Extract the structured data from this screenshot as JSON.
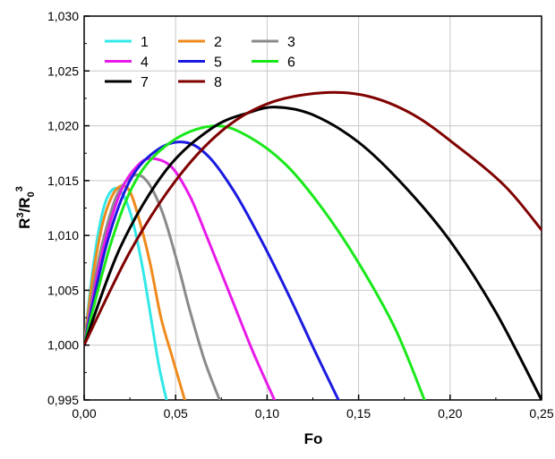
{
  "chart_data": {
    "type": "line",
    "title": "",
    "xlabel": "Fo",
    "ylabel": {
      "base": "R",
      "sup1": "3",
      "mid": "/R",
      "sub": "0",
      "sup2": "3"
    },
    "xlim": [
      0,
      0.25
    ],
    "ylim": [
      0.995,
      1.03
    ],
    "xticks": [
      0,
      0.05,
      0.1,
      0.15,
      0.2,
      0.25
    ],
    "xtick_labels": [
      "0,00",
      "0,05",
      "0,10",
      "0,15",
      "0,20",
      "0,25"
    ],
    "yticks": [
      0.995,
      1.0,
      1.005,
      1.01,
      1.015,
      1.02,
      1.025,
      1.03
    ],
    "ytick_labels": [
      "0,995",
      "1,000",
      "1,005",
      "1,010",
      "1,015",
      "1,020",
      "1,025",
      "1,030"
    ],
    "grid": true,
    "legend": {
      "placement": "top-left",
      "columns": 3
    },
    "series": [
      {
        "name": "1",
        "color": "#33e8e8",
        "points": [
          [
            0,
            1.0
          ],
          [
            0.004,
            1.006
          ],
          [
            0.008,
            1.0105
          ],
          [
            0.012,
            1.0132
          ],
          [
            0.017,
            1.0143
          ],
          [
            0.022,
            1.0135
          ],
          [
            0.027,
            1.011
          ],
          [
            0.032,
            1.007
          ],
          [
            0.037,
            1.002
          ],
          [
            0.041,
            0.998
          ],
          [
            0.045,
            0.995
          ]
        ]
      },
      {
        "name": "2",
        "color": "#f08a1c",
        "points": [
          [
            0,
            1.0
          ],
          [
            0.005,
            1.0065
          ],
          [
            0.01,
            1.011
          ],
          [
            0.015,
            1.0135
          ],
          [
            0.02,
            1.0145
          ],
          [
            0.025,
            1.014
          ],
          [
            0.03,
            1.0115
          ],
          [
            0.036,
            1.0075
          ],
          [
            0.042,
            1.0025
          ],
          [
            0.048,
            0.999
          ],
          [
            0.055,
            0.995
          ]
        ]
      },
      {
        "name": "3",
        "color": "#8a8a8a",
        "points": [
          [
            0,
            1.0
          ],
          [
            0.007,
            1.007
          ],
          [
            0.014,
            1.0118
          ],
          [
            0.02,
            1.0143
          ],
          [
            0.028,
            1.0155
          ],
          [
            0.035,
            1.0148
          ],
          [
            0.043,
            1.012
          ],
          [
            0.051,
            1.0075
          ],
          [
            0.058,
            1.003
          ],
          [
            0.066,
            0.9985
          ],
          [
            0.074,
            0.995
          ]
        ]
      },
      {
        "name": "4",
        "color": "#e81ae8",
        "points": [
          [
            0,
            1.0
          ],
          [
            0.01,
            1.0085
          ],
          [
            0.02,
            1.014
          ],
          [
            0.03,
            1.0165
          ],
          [
            0.038,
            1.017
          ],
          [
            0.048,
            1.0162
          ],
          [
            0.058,
            1.0135
          ],
          [
            0.068,
            1.0095
          ],
          [
            0.08,
            1.0045
          ],
          [
            0.092,
            0.9995
          ],
          [
            0.104,
            0.995
          ]
        ]
      },
      {
        "name": "5",
        "color": "#1a1ae0",
        "points": [
          [
            0,
            1.0
          ],
          [
            0.012,
            1.009
          ],
          [
            0.025,
            1.015
          ],
          [
            0.04,
            1.0178
          ],
          [
            0.055,
            1.0185
          ],
          [
            0.068,
            1.0172
          ],
          [
            0.082,
            1.014
          ],
          [
            0.097,
            1.0095
          ],
          [
            0.112,
            1.0045
          ],
          [
            0.126,
            0.9995
          ],
          [
            0.139,
            0.995
          ]
        ]
      },
      {
        "name": "6",
        "color": "#1ae81a",
        "points": [
          [
            0,
            1.0
          ],
          [
            0.015,
            1.0095
          ],
          [
            0.03,
            1.0155
          ],
          [
            0.05,
            1.0188
          ],
          [
            0.072,
            1.02
          ],
          [
            0.09,
            1.019
          ],
          [
            0.11,
            1.0165
          ],
          [
            0.13,
            1.0125
          ],
          [
            0.15,
            1.0075
          ],
          [
            0.17,
            1.0015
          ],
          [
            0.186,
            0.995
          ]
        ]
      },
      {
        "name": "7",
        "color": "#000000",
        "points": [
          [
            0,
            1.0
          ],
          [
            0.02,
            1.009
          ],
          [
            0.045,
            1.016
          ],
          [
            0.07,
            1.0198
          ],
          [
            0.09,
            1.0212
          ],
          [
            0.105,
            1.0217
          ],
          [
            0.125,
            1.021
          ],
          [
            0.15,
            1.0185
          ],
          [
            0.175,
            1.0145
          ],
          [
            0.2,
            1.0095
          ],
          [
            0.225,
            1.003
          ],
          [
            0.25,
            0.995
          ]
        ]
      },
      {
        "name": "8",
        "color": "#800000",
        "points": [
          [
            0,
            1.0
          ],
          [
            0.025,
            1.0085
          ],
          [
            0.05,
            1.015
          ],
          [
            0.075,
            1.0195
          ],
          [
            0.1,
            1.022
          ],
          [
            0.13,
            1.023
          ],
          [
            0.155,
            1.0227
          ],
          [
            0.18,
            1.021
          ],
          [
            0.205,
            1.018
          ],
          [
            0.23,
            1.0145
          ],
          [
            0.25,
            1.0105
          ]
        ]
      }
    ]
  }
}
